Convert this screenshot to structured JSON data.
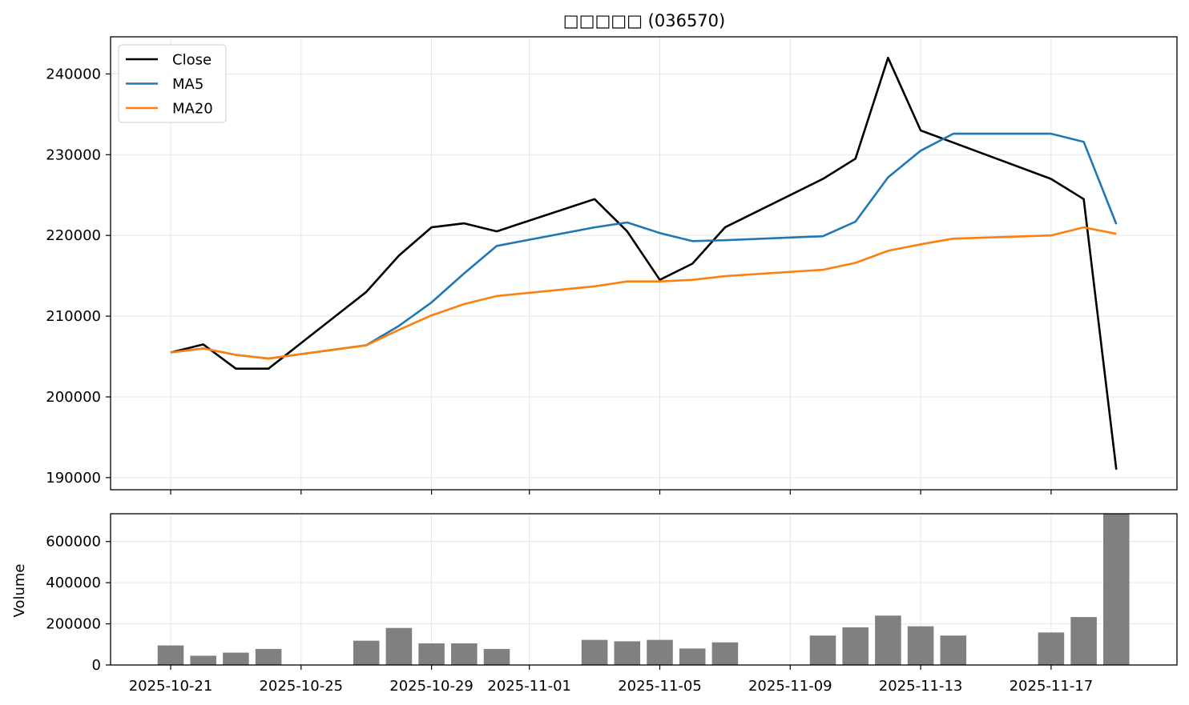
{
  "chart_data": [
    {
      "type": "line",
      "title": "□□□□□ (036570)",
      "xlabel": "",
      "ylabel": "",
      "ylim": [
        188500,
        244600
      ],
      "yticks": [
        190000,
        200000,
        210000,
        220000,
        230000,
        240000
      ],
      "x": [
        "2025-10-21",
        "2025-10-22",
        "2025-10-23",
        "2025-10-24",
        "2025-10-27",
        "2025-10-28",
        "2025-10-29",
        "2025-10-30",
        "2025-10-31",
        "2025-11-03",
        "2025-11-04",
        "2025-11-05",
        "2025-11-06",
        "2025-11-07",
        "2025-11-10",
        "2025-11-11",
        "2025-11-12",
        "2025-11-13",
        "2025-11-14",
        "2025-11-17",
        "2025-11-18",
        "2025-11-19"
      ],
      "series": [
        {
          "name": "Close",
          "color": "#000000",
          "values": [
            205500,
            206500,
            203500,
            203500,
            213000,
            217500,
            221000,
            221500,
            220500,
            224500,
            220500,
            214500,
            216500,
            221000,
            227000,
            229500,
            242000,
            233000,
            231500,
            227000,
            224500,
            191000
          ]
        },
        {
          "name": "MA5",
          "color": "#1f77b4",
          "values": [
            205500,
            206000,
            205200,
            204750,
            206400,
            208800,
            211700,
            215300,
            218700,
            221000,
            221600,
            220300,
            219300,
            219400,
            219900,
            221700,
            227200,
            230500,
            232600,
            232600,
            231600,
            221400
          ]
        },
        {
          "name": "MA20",
          "color": "#ff7f0e",
          "values": [
            205500,
            206000,
            205200,
            204750,
            206400,
            208300,
            210100,
            211500,
            212500,
            213700,
            214300,
            214300,
            214500,
            214950,
            215750,
            216600,
            218100,
            218900,
            219600,
            220000,
            221000,
            220200
          ]
        }
      ],
      "legend": "top-left",
      "grid": true
    },
    {
      "type": "bar",
      "title": "",
      "xlabel": "",
      "ylabel": "Volume",
      "ylim": [
        0,
        735000
      ],
      "yticks": [
        0,
        200000,
        400000,
        600000
      ],
      "x": [
        "2025-10-21",
        "2025-10-22",
        "2025-10-23",
        "2025-10-24",
        "2025-10-27",
        "2025-10-28",
        "2025-10-29",
        "2025-10-30",
        "2025-10-31",
        "2025-11-03",
        "2025-11-04",
        "2025-11-05",
        "2025-11-06",
        "2025-11-07",
        "2025-11-10",
        "2025-11-11",
        "2025-11-12",
        "2025-11-13",
        "2025-11-14",
        "2025-11-17",
        "2025-11-18",
        "2025-11-19"
      ],
      "values": [
        95000,
        45000,
        60000,
        78000,
        118000,
        180000,
        105000,
        105000,
        78000,
        122000,
        115000,
        122000,
        80000,
        110000,
        143000,
        183000,
        240000,
        188000,
        143000,
        158000,
        233000,
        733000
      ],
      "color": "#808080",
      "xticks": [
        "2025-10-21",
        "2025-10-25",
        "2025-10-29",
        "2025-11-01",
        "2025-11-05",
        "2025-11-09",
        "2025-11-13",
        "2025-11-17"
      ],
      "grid": true
    }
  ]
}
